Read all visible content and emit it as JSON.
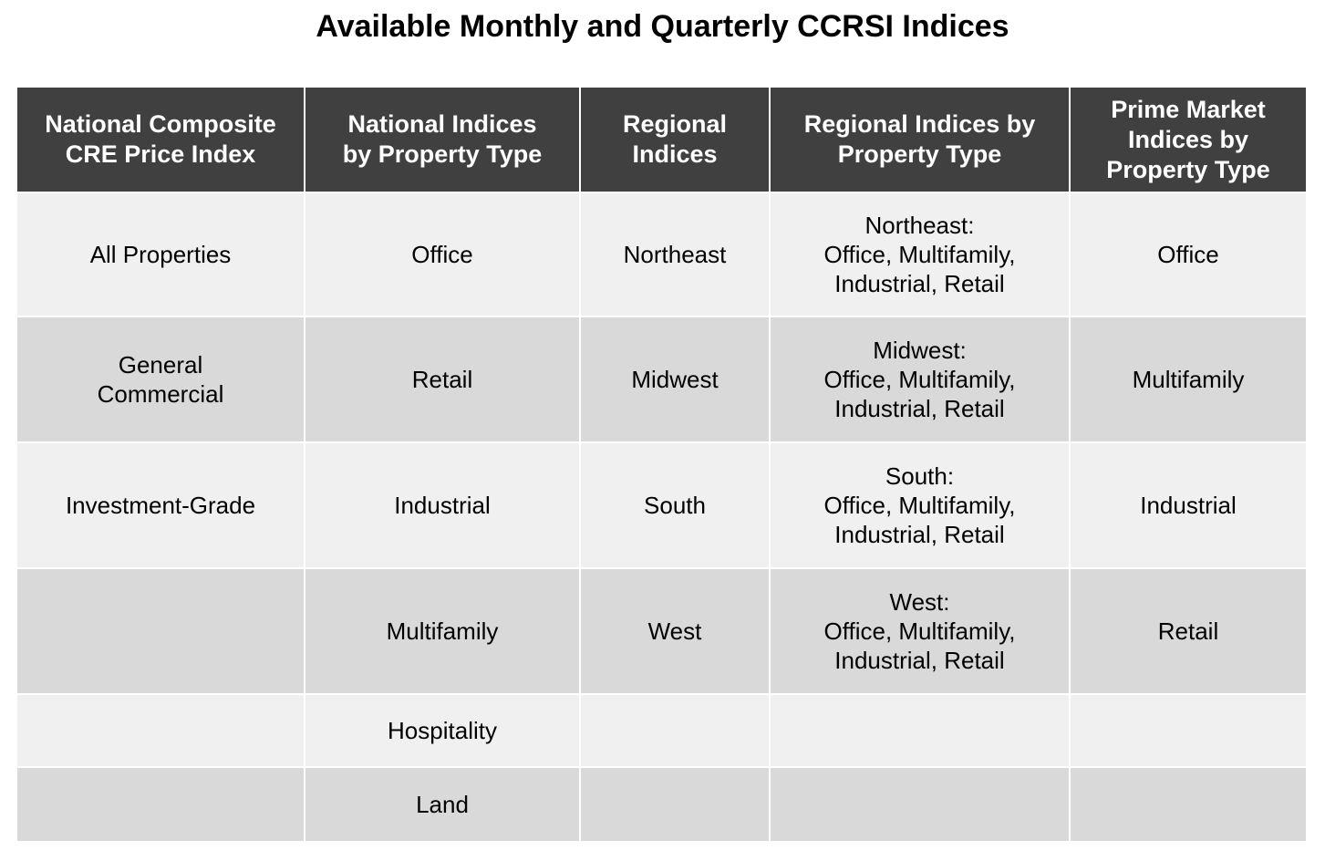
{
  "title": "Available Monthly and Quarterly CCRSI Indices",
  "table": {
    "headers": [
      "National Composite\nCRE Price Index",
      "National Indices\nby Property Type",
      "Regional\nIndices",
      "Regional Indices by\nProperty Type",
      "Prime Market\nIndices by\nProperty Type"
    ],
    "rows": [
      [
        "All Properties",
        "Office",
        "Northeast",
        "Northeast:\nOffice, Multifamily,\nIndustrial, Retail",
        "Office"
      ],
      [
        "General\nCommercial",
        "Retail",
        "Midwest",
        "Midwest:\nOffice, Multifamily,\nIndustrial, Retail",
        "Multifamily"
      ],
      [
        "Investment-Grade",
        "Industrial",
        "South",
        "South:\nOffice, Multifamily,\nIndustrial, Retail",
        "Industrial"
      ],
      [
        null,
        "Multifamily",
        "West",
        "West:\nOffice, Multifamily,\nIndustrial, Retail",
        "Retail"
      ],
      [
        null,
        "Hospitality",
        null,
        null,
        null
      ],
      [
        null,
        "Land",
        null,
        null,
        null
      ]
    ]
  }
}
